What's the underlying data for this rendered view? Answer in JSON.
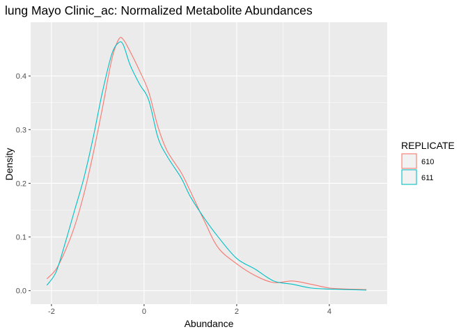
{
  "chart_data": {
    "type": "line",
    "title": "lung Mayo Clinic_ac: Normalized Metabolite Abundances",
    "xlabel": "Abundance",
    "ylabel": "Density",
    "xlim": [
      -2.45,
      5.25
    ],
    "ylim": [
      -0.025,
      0.5
    ],
    "x_ticks": [
      -2,
      0,
      2,
      4
    ],
    "x_tick_labels": [
      "-2",
      "0",
      "2",
      "4"
    ],
    "y_ticks": [
      0.0,
      0.1,
      0.2,
      0.3,
      0.4
    ],
    "y_tick_labels": [
      "0.0",
      "0.1",
      "0.2",
      "0.3",
      "0.4"
    ],
    "grid": true,
    "legend": {
      "title": "REPLICATE",
      "position": "right"
    },
    "series": [
      {
        "name": "610",
        "color": "#F8766D",
        "x": [
          -2.1,
          -1.9,
          -1.7,
          -1.5,
          -1.3,
          -1.1,
          -0.9,
          -0.7,
          -0.55,
          -0.45,
          -0.3,
          -0.1,
          0.1,
          0.3,
          0.5,
          0.8,
          1.0,
          1.3,
          1.6,
          2.0,
          2.4,
          2.8,
          3.2,
          3.6,
          4.0,
          4.4,
          4.8
        ],
        "y": [
          0.022,
          0.04,
          0.075,
          0.12,
          0.18,
          0.255,
          0.34,
          0.43,
          0.468,
          0.468,
          0.445,
          0.41,
          0.37,
          0.305,
          0.26,
          0.22,
          0.185,
          0.13,
          0.08,
          0.05,
          0.028,
          0.015,
          0.018,
          0.012,
          0.005,
          0.003,
          0.002
        ]
      },
      {
        "name": "611",
        "color": "#00BFC4",
        "x": [
          -2.1,
          -1.9,
          -1.7,
          -1.5,
          -1.3,
          -1.1,
          -0.9,
          -0.7,
          -0.55,
          -0.45,
          -0.3,
          -0.1,
          0.1,
          0.3,
          0.5,
          0.8,
          1.0,
          1.3,
          1.6,
          2.0,
          2.4,
          2.8,
          3.2,
          3.6,
          4.0,
          4.4,
          4.8
        ],
        "y": [
          0.01,
          0.035,
          0.09,
          0.15,
          0.21,
          0.285,
          0.37,
          0.44,
          0.462,
          0.458,
          0.42,
          0.385,
          0.355,
          0.285,
          0.25,
          0.21,
          0.175,
          0.135,
          0.1,
          0.06,
          0.04,
          0.018,
          0.012,
          0.005,
          0.003,
          0.002,
          0.001
        ]
      }
    ]
  }
}
